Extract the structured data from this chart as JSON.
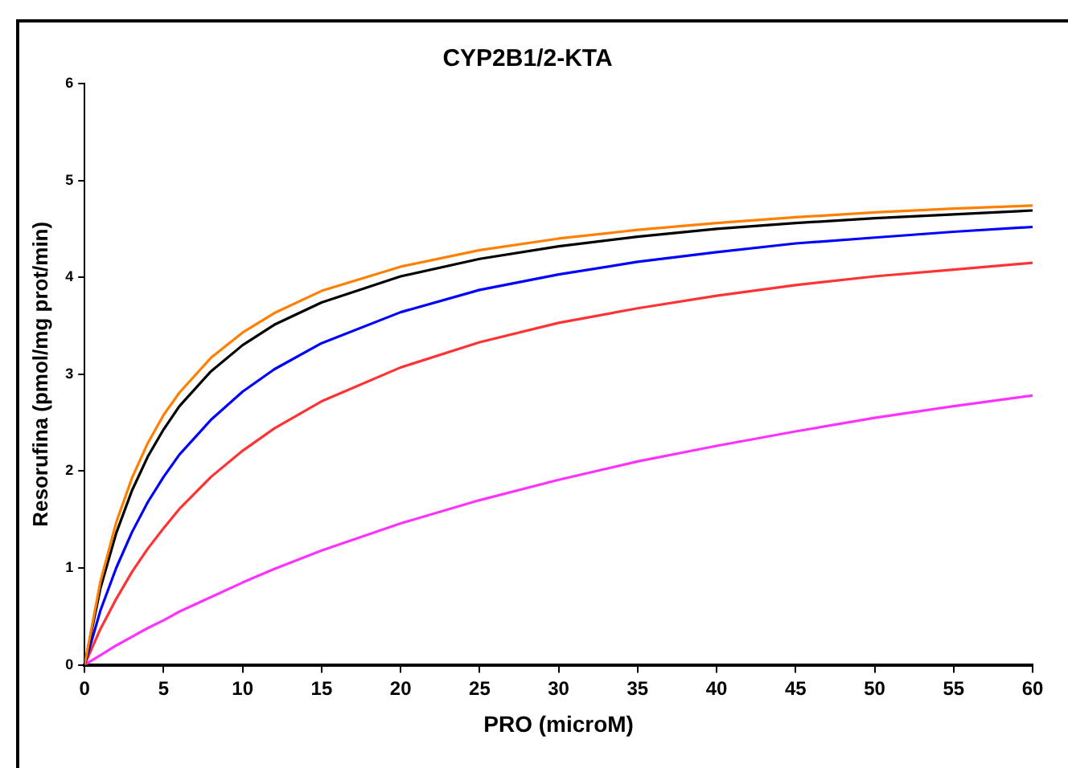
{
  "chart_data": {
    "type": "line",
    "title": "CYP2B1/2-KTA",
    "xlabel": "PRO (microM)",
    "ylabel": "Resorufina (pmol/mg prot/min)",
    "x": [
      0,
      1,
      2,
      3,
      4,
      5,
      6,
      8,
      10,
      12,
      15,
      20,
      25,
      30,
      35,
      40,
      45,
      50,
      55,
      60
    ],
    "series": [
      {
        "color": "#ff8000",
        "values": [
          0,
          0.86,
          1.47,
          1.93,
          2.29,
          2.58,
          2.81,
          3.17,
          3.43,
          3.63,
          3.86,
          4.11,
          4.28,
          4.4,
          4.49,
          4.56,
          4.62,
          4.67,
          4.71,
          4.74
        ]
      },
      {
        "color": "#000000",
        "values": [
          0,
          0.79,
          1.36,
          1.8,
          2.15,
          2.43,
          2.67,
          3.03,
          3.3,
          3.51,
          3.74,
          4.01,
          4.19,
          4.32,
          4.42,
          4.5,
          4.56,
          4.61,
          4.65,
          4.69
        ]
      },
      {
        "color": "#0000ff",
        "values": [
          0,
          0.56,
          1.0,
          1.37,
          1.68,
          1.94,
          2.17,
          2.53,
          2.82,
          3.05,
          3.32,
          3.64,
          3.87,
          4.03,
          4.16,
          4.26,
          4.35,
          4.41,
          4.47,
          4.52
        ]
      },
      {
        "color": "#ff3333",
        "values": [
          0,
          0.37,
          0.68,
          0.96,
          1.2,
          1.41,
          1.61,
          1.94,
          2.21,
          2.44,
          2.72,
          3.07,
          3.33,
          3.53,
          3.68,
          3.81,
          3.92,
          4.01,
          4.08,
          4.15
        ]
      },
      {
        "color": "#ff33ff",
        "values": [
          0,
          0.1,
          0.2,
          0.29,
          0.38,
          0.46,
          0.55,
          0.7,
          0.85,
          0.99,
          1.18,
          1.46,
          1.7,
          1.91,
          2.1,
          2.26,
          2.41,
          2.55,
          2.67,
          2.78
        ]
      }
    ],
    "xlim": [
      0,
      60
    ],
    "xticks": [
      0,
      5,
      10,
      15,
      20,
      25,
      30,
      35,
      40,
      45,
      50,
      55,
      60
    ],
    "ylim": [
      0,
      6
    ],
    "yticks": [
      0,
      1,
      2,
      3,
      4,
      5,
      6
    ],
    "grid": false,
    "legend": false,
    "marker": "none",
    "line_style": "solid"
  }
}
